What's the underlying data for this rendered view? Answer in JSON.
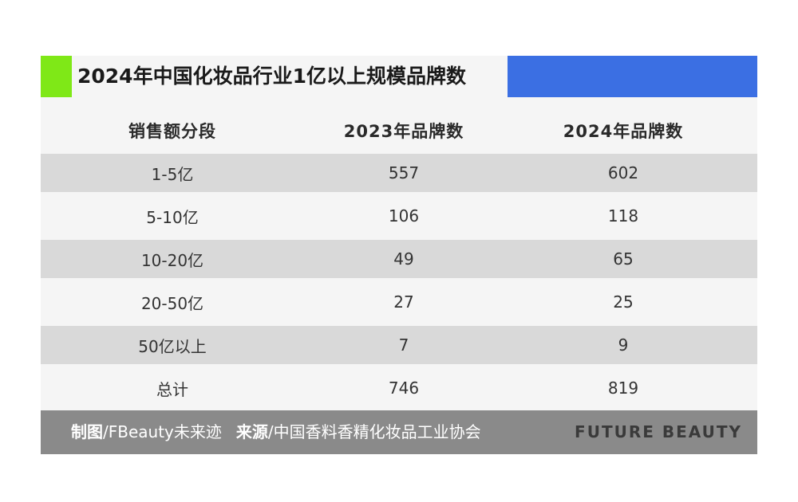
{
  "chart_data": {
    "type": "table",
    "title": "2024年中国化妆品行业1亿以上规模品牌数",
    "columns": [
      "销售额分段",
      "2023年品牌数",
      "2024年品牌数"
    ],
    "rows": [
      {
        "segment": "1-5亿",
        "y2023": "557",
        "y2024": "602"
      },
      {
        "segment": "5-10亿",
        "y2023": "106",
        "y2024": "118"
      },
      {
        "segment": "10-20亿",
        "y2023": "49",
        "y2024": "65"
      },
      {
        "segment": "20-50亿",
        "y2023": "27",
        "y2024": "25"
      },
      {
        "segment": "50亿以上",
        "y2023": "7",
        "y2024": "9"
      },
      {
        "segment": "总计",
        "y2023": "746",
        "y2024": "819"
      }
    ]
  },
  "footer": {
    "chart_label": "制图",
    "chart_value": "/FBeauty未来迹",
    "source_label": "来源",
    "source_value": "/中国香料香精化妆品工业协会",
    "brand": "FUTURE BEAUTY"
  },
  "colors": {
    "accent_green": "#7fe817",
    "accent_blue": "#3b6fe3",
    "row_shade": "#d9d9d9",
    "footer_bg": "#8a8a8a"
  }
}
